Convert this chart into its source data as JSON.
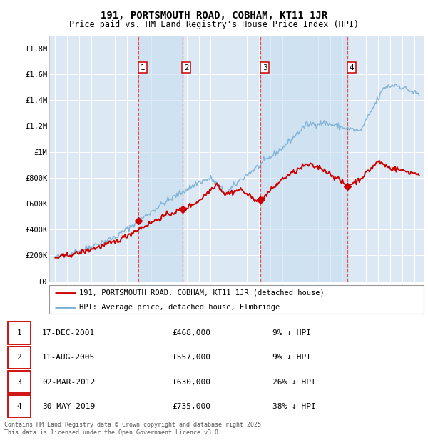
{
  "title": "191, PORTSMOUTH ROAD, COBHAM, KT11 1JR",
  "subtitle": "Price paid vs. HM Land Registry's House Price Index (HPI)",
  "footer": "Contains HM Land Registry data © Crown copyright and database right 2025.\nThis data is licensed under the Open Government Licence v3.0.",
  "legend_line1": "191, PORTSMOUTH ROAD, COBHAM, KT11 1JR (detached house)",
  "legend_line2": "HPI: Average price, detached house, Elmbridge",
  "transactions": [
    {
      "num": 1,
      "date": "17-DEC-2001",
      "price": 468000,
      "pct": "9%",
      "dir": "↓",
      "year_x": 2001.96
    },
    {
      "num": 2,
      "date": "11-AUG-2005",
      "price": 557000,
      "pct": "9%",
      "dir": "↓",
      "year_x": 2005.62
    },
    {
      "num": 3,
      "date": "02-MAR-2012",
      "price": 630000,
      "pct": "26%",
      "dir": "↓",
      "year_x": 2012.17
    },
    {
      "num": 4,
      "date": "30-MAY-2019",
      "price": 735000,
      "pct": "38%",
      "dir": "↓",
      "year_x": 2019.42
    }
  ],
  "ylim": [
    0,
    1900000
  ],
  "xlim_start": 1994.5,
  "xlim_end": 2025.8,
  "bg_color": "#dce9f5",
  "red_line_color": "#cc0000",
  "blue_line_color": "#7aafd4",
  "grid_color": "#ffffff",
  "dashed_line_color": "#ee3333",
  "title_fontsize": 10,
  "subtitle_fontsize": 8.5,
  "ytick_fontsize": 7.5,
  "xtick_fontsize": 6.5,
  "legend_fontsize": 7.5,
  "table_fontsize": 8,
  "footer_fontsize": 6
}
